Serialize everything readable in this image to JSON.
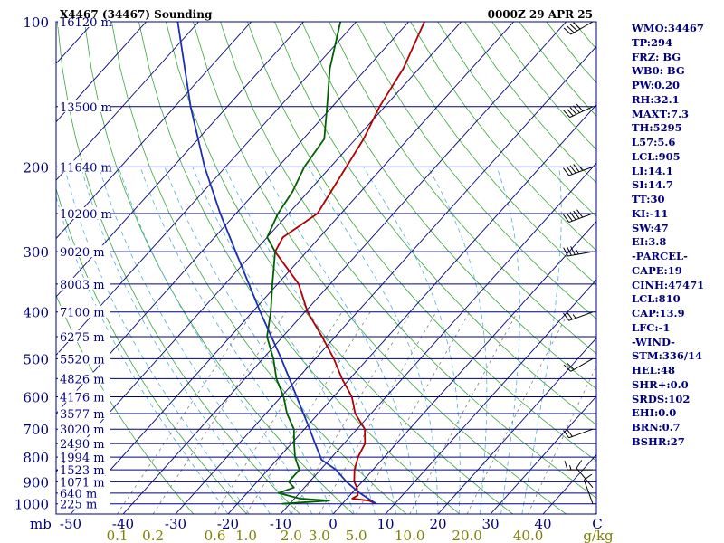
{
  "header": {
    "station": "X4467 (34467) Sounding",
    "time": "0000Z 29 APR 25"
  },
  "colors": {
    "frame": "#00007f",
    "isobar": "#00007f",
    "isotherm": "#00007f",
    "dry_adiabat": "#3aa63a",
    "moist_adiabat": "#4fb0d8",
    "mixing_ratio": "#7f7f7f",
    "temperature": "#b00000",
    "dewpoint": "#006000",
    "parcel": "#1c2fae",
    "wind": "#000000",
    "mixing_label": "#7f7f00"
  },
  "side_panel": [
    "WMO:34467",
    "TP:294",
    "FRZ: BG",
    "WB0: BG",
    "PW:0.20",
    "RH:32.1",
    "MAXT:7.3",
    "TH:5295",
    "L57:5.6",
    "LCL:905",
    "LI:14.1",
    "SI:14.7",
    "TT:30",
    "KI:-11",
    "SW:47",
    "EI:3.8",
    "-PARCEL-",
    "CAPE:19",
    "CINH:47471",
    "LCL:810",
    "CAP:13.9",
    "LFC:-1",
    "-WIND-",
    "STM:336/14",
    "HEL:48",
    "SHR+:0.0",
    "SRDS:102",
    "EHI:0.0",
    "BRN:0.7",
    "BSHR:27"
  ],
  "chart_data": {
    "type": "skew-t",
    "pressure_axis": {
      "unit": "mb",
      "scale": "log",
      "range": [
        1050,
        100
      ],
      "ticks": [
        100,
        200,
        300,
        400,
        500,
        600,
        700,
        800,
        900,
        1000
      ]
    },
    "temperature_axis": {
      "unit": "C",
      "ticks": [
        "-50",
        "-40",
        "-30",
        "-20",
        "-10",
        "0",
        "10",
        "20",
        "30",
        "40"
      ],
      "end_label": "C"
    },
    "mixing_ratio_axis": {
      "unit": "g/kg",
      "ticks": [
        "0.1",
        "0.2",
        "0.6",
        "1.0",
        "2.0",
        "3.0",
        "5.0",
        "10.0",
        "20.0",
        "40.0"
      ]
    },
    "height_labels": [
      {
        "p": 100,
        "label": "16120 m"
      },
      {
        "p": 150,
        "label": "13500 m"
      },
      {
        "p": 200,
        "label": "11640 m"
      },
      {
        "p": 250,
        "label": "10200 m"
      },
      {
        "p": 300,
        "label": "9020 m"
      },
      {
        "p": 350,
        "label": "8003 m"
      },
      {
        "p": 400,
        "label": "7100 m"
      },
      {
        "p": 450,
        "label": "6275 m"
      },
      {
        "p": 500,
        "label": "5520 m"
      },
      {
        "p": 550,
        "label": "4826 m"
      },
      {
        "p": 600,
        "label": "4176 m"
      },
      {
        "p": 650,
        "label": "3577 m"
      },
      {
        "p": 700,
        "label": "3020 m"
      },
      {
        "p": 750,
        "label": "2490 m"
      },
      {
        "p": 800,
        "label": "1994 m"
      },
      {
        "p": 850,
        "label": "1523 m"
      },
      {
        "p": 900,
        "label": "1071 m"
      },
      {
        "p": 950,
        "label": "640 m"
      },
      {
        "p": 1000,
        "label": "225 m"
      }
    ],
    "series": [
      {
        "name": "temperature",
        "points": [
          [
            1000,
            6.5
          ],
          [
            985,
            4.5
          ],
          [
            975,
            1.0
          ],
          [
            960,
            1.5
          ],
          [
            925,
            0.0
          ],
          [
            900,
            -1.5
          ],
          [
            850,
            -3.5
          ],
          [
            800,
            -5.0
          ],
          [
            750,
            -6.0
          ],
          [
            700,
            -8.5
          ],
          [
            650,
            -13.0
          ],
          [
            600,
            -16.5
          ],
          [
            550,
            -21.5
          ],
          [
            500,
            -26.5
          ],
          [
            450,
            -32.5
          ],
          [
            400,
            -39.5
          ],
          [
            350,
            -46.0
          ],
          [
            300,
            -56.0
          ],
          [
            280,
            -57.0
          ],
          [
            250,
            -54.5
          ],
          [
            200,
            -57.0
          ],
          [
            175,
            -58.5
          ],
          [
            150,
            -61.0
          ],
          [
            125,
            -63.0
          ],
          [
            100,
            -67.0
          ]
        ]
      },
      {
        "name": "dewpoint",
        "points": [
          [
            1000,
            -11.5
          ],
          [
            985,
            -3.0
          ],
          [
            975,
            -9.0
          ],
          [
            950,
            -14.0
          ],
          [
            925,
            -12.0
          ],
          [
            900,
            -14.0
          ],
          [
            850,
            -14.0
          ],
          [
            800,
            -17.0
          ],
          [
            750,
            -19.5
          ],
          [
            700,
            -22.0
          ],
          [
            650,
            -26.0
          ],
          [
            600,
            -29.5
          ],
          [
            550,
            -34.0
          ],
          [
            500,
            -38.0
          ],
          [
            450,
            -43.0
          ],
          [
            400,
            -46.5
          ],
          [
            350,
            -51.0
          ],
          [
            300,
            -56.0
          ],
          [
            280,
            -60.0
          ],
          [
            250,
            -62.0
          ],
          [
            225,
            -63.0
          ],
          [
            200,
            -65.0
          ],
          [
            175,
            -66.0
          ],
          [
            150,
            -71.0
          ],
          [
            125,
            -77.0
          ],
          [
            100,
            -83.0
          ]
        ]
      },
      {
        "name": "parcel",
        "points": [
          [
            1000,
            6.5
          ],
          [
            950,
            1.5
          ],
          [
            900,
            -3.0
          ],
          [
            850,
            -7.0
          ],
          [
            810,
            -11.5
          ],
          [
            750,
            -15.5
          ],
          [
            700,
            -19.0
          ],
          [
            600,
            -27.0
          ],
          [
            500,
            -36.5
          ],
          [
            400,
            -48.5
          ],
          [
            300,
            -63.5
          ],
          [
            250,
            -73.0
          ],
          [
            200,
            -84.0
          ],
          [
            150,
            -97.0
          ],
          [
            100,
            -114.0
          ]
        ]
      }
    ],
    "wind_barbs": [
      {
        "p": 1000,
        "dir": 340,
        "spd": 10
      },
      {
        "p": 925,
        "dir": 320,
        "spd": 10
      },
      {
        "p": 850,
        "dir": 270,
        "spd": 15
      },
      {
        "p": 700,
        "dir": 250,
        "spd": 20
      },
      {
        "p": 500,
        "dir": 240,
        "spd": 20
      },
      {
        "p": 400,
        "dir": 250,
        "spd": 25
      },
      {
        "p": 300,
        "dir": 260,
        "spd": 35
      },
      {
        "p": 250,
        "dir": 250,
        "spd": 50
      },
      {
        "p": 200,
        "dir": 250,
        "spd": 45
      },
      {
        "p": 150,
        "dir": 245,
        "spd": 50
      },
      {
        "p": 100,
        "dir": 240,
        "spd": 40
      }
    ]
  }
}
